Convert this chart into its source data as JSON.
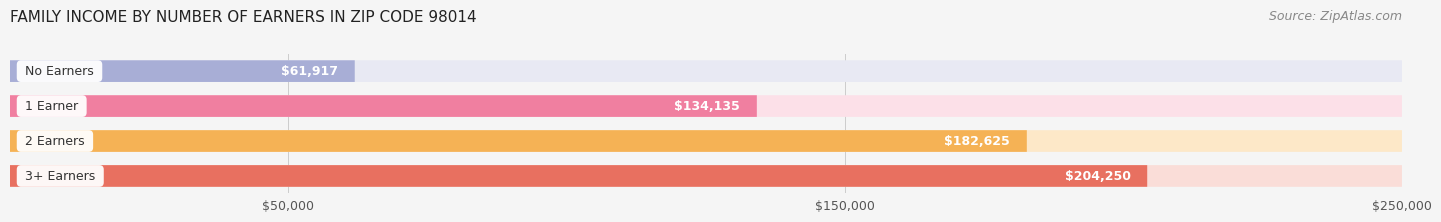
{
  "title": "FAMILY INCOME BY NUMBER OF EARNERS IN ZIP CODE 98014",
  "source": "Source: ZipAtlas.com",
  "categories": [
    "No Earners",
    "1 Earner",
    "2 Earners",
    "3+ Earners"
  ],
  "values": [
    61917,
    134135,
    182625,
    204250
  ],
  "labels": [
    "$61,917",
    "$134,135",
    "$182,625",
    "$204,250"
  ],
  "bar_colors": [
    "#a8aed6",
    "#f07fa0",
    "#f5b255",
    "#e87060"
  ],
  "bar_bg_colors": [
    "#e8e9f3",
    "#fce0e8",
    "#fde8c8",
    "#faddd8"
  ],
  "xlim": [
    0,
    250000
  ],
  "xticks": [
    50000,
    150000,
    250000
  ],
  "xticklabels": [
    "$50,000",
    "$150,000",
    "$250,000"
  ],
  "background_color": "#f5f5f5",
  "bar_height": 0.62,
  "label_color_inside": "#ffffff",
  "label_color_outside": "#555555",
  "title_fontsize": 11,
  "source_fontsize": 9,
  "tick_fontsize": 9,
  "label_fontsize": 9,
  "category_fontsize": 9
}
